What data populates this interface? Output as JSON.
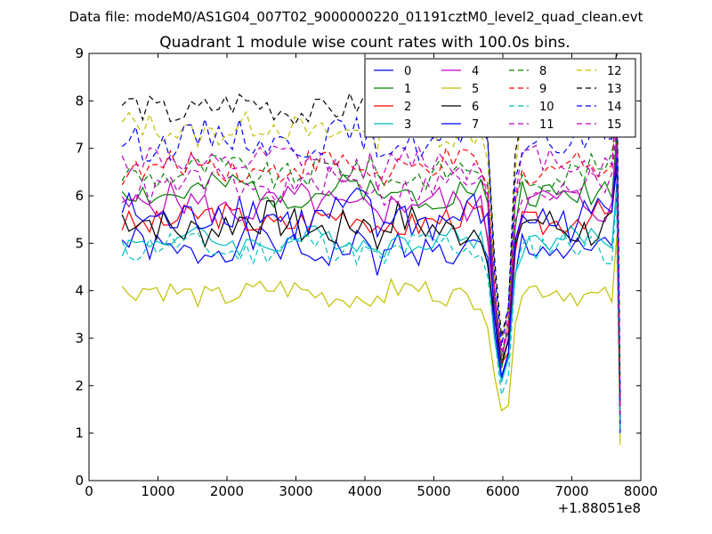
{
  "suptitle": "Data file: modeM0/AS1G04_007T02_9000000220_01191cztM0_level2_quad_clean.evt",
  "chart_data": {
    "type": "line",
    "title": "Quadrant 1 module wise count rates with 100.0s bins.",
    "xlabel": "",
    "ylabel": "",
    "xlim": [
      0,
      8000
    ],
    "ylim": [
      0,
      9
    ],
    "x_ticks": [
      0,
      1000,
      2000,
      3000,
      4000,
      5000,
      6000,
      7000,
      8000
    ],
    "x_tick_labels": [
      "0",
      "1000",
      "2000",
      "3000",
      "4000",
      "5000",
      "6000",
      "7000",
      "8000"
    ],
    "y_ticks": [
      0,
      1,
      2,
      3,
      4,
      5,
      6,
      7,
      8,
      9
    ],
    "y_tick_labels": [
      "0",
      "1",
      "2",
      "3",
      "4",
      "5",
      "6",
      "7",
      "8",
      "9"
    ],
    "x_offset_label": "+1.88051e8",
    "legend_position": "top-right",
    "legend_columns": 4,
    "x_start": 480,
    "x_step": 100,
    "gap": [
      5880,
      6180
    ],
    "series": [
      {
        "name": "0",
        "color": "#0000ff",
        "dash": "solid",
        "base": 4.9,
        "amp": 0.35,
        "seed": 1,
        "dip": 2.1,
        "endv": 1.0
      },
      {
        "name": "1",
        "color": "#008000",
        "dash": "solid",
        "base": 6.1,
        "amp": 0.3,
        "seed": 2,
        "dip": 2.4,
        "endv": 1.3
      },
      {
        "name": "2",
        "color": "#ff0000",
        "dash": "solid",
        "base": 5.5,
        "amp": 0.3,
        "seed": 3,
        "dip": 2.3,
        "endv": 1.2
      },
      {
        "name": "3",
        "color": "#00bfbf",
        "dash": "solid",
        "base": 5.05,
        "amp": 0.25,
        "seed": 4,
        "dip": 2.0,
        "endv": 1.1
      },
      {
        "name": "4",
        "color": "#bf00bf",
        "dash": "solid",
        "base": 5.8,
        "amp": 0.35,
        "seed": 5,
        "dip": 2.5,
        "endv": 1.2
      },
      {
        "name": "5",
        "color": "#bfbf00",
        "dash": "solid",
        "base": 3.95,
        "amp": 0.25,
        "seed": 6,
        "dip": 1.3,
        "endv": 0.75
      },
      {
        "name": "6",
        "color": "#000000",
        "dash": "solid",
        "base": 5.4,
        "amp": 0.4,
        "seed": 7,
        "dip": 2.4,
        "endv": 1.1
      },
      {
        "name": "7",
        "color": "#0000ff",
        "dash": "solid",
        "base": 5.6,
        "amp": 0.45,
        "seed": 8,
        "dip": 2.2,
        "endv": 1.0
      },
      {
        "name": "8",
        "color": "#008000",
        "dash": "dashed",
        "base": 6.5,
        "amp": 0.3,
        "seed": 9,
        "dip": 2.6,
        "endv": 1.5
      },
      {
        "name": "9",
        "color": "#ff0000",
        "dash": "dashed",
        "base": 6.6,
        "amp": 0.3,
        "seed": 10,
        "dip": 2.5,
        "endv": 1.5
      },
      {
        "name": "10",
        "color": "#00bfbf",
        "dash": "dashed",
        "base": 4.9,
        "amp": 0.3,
        "seed": 11,
        "dip": 1.8,
        "endv": 1.0
      },
      {
        "name": "11",
        "color": "#bf00bf",
        "dash": "dashed",
        "base": 6.7,
        "amp": 0.3,
        "seed": 12,
        "dip": 2.7,
        "endv": 1.6
      },
      {
        "name": "12",
        "color": "#bfbf00",
        "dash": "dashed",
        "base": 7.4,
        "amp": 0.3,
        "seed": 13,
        "dip": 2.8,
        "endv": 1.7
      },
      {
        "name": "13",
        "color": "#000000",
        "dash": "dashed",
        "base": 7.85,
        "amp": 0.3,
        "seed": 14,
        "dip": 3.0,
        "endv": 1.8
      },
      {
        "name": "14",
        "color": "#0000ff",
        "dash": "dashed",
        "base": 7.2,
        "amp": 0.35,
        "seed": 15,
        "dip": 2.9,
        "endv": 1.6
      },
      {
        "name": "15",
        "color": "#bf00bf",
        "dash": "dashed",
        "base": 6.2,
        "amp": 0.3,
        "seed": 16,
        "dip": 2.6,
        "endv": 1.4
      }
    ]
  }
}
